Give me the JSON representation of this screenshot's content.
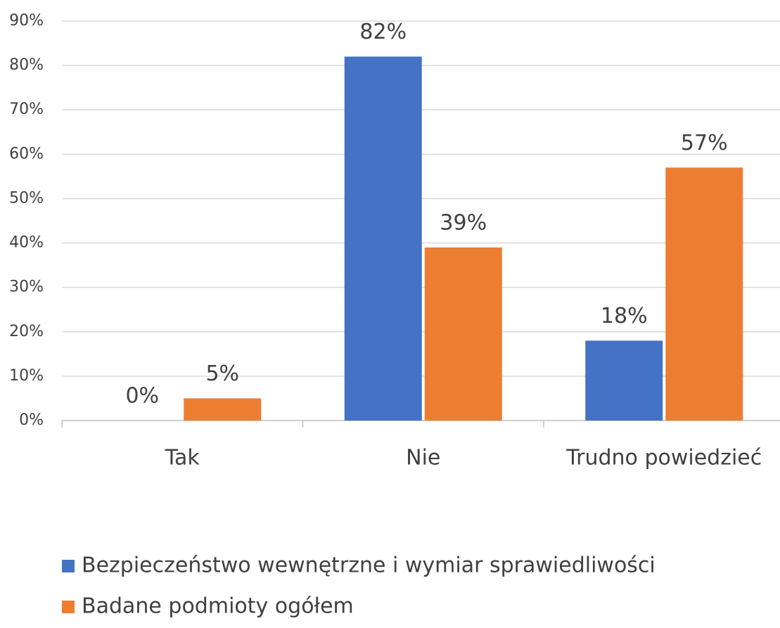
{
  "chart_data": {
    "type": "bar",
    "categories": [
      "Tak",
      "Nie",
      "Trudno powiedzieć"
    ],
    "series": [
      {
        "name": "Bezpieczeństwo wewnętrzne i wymiar sprawiedliwości",
        "color": "#4472c4",
        "values": [
          0,
          82,
          18
        ],
        "value_labels": [
          "0%",
          "82%",
          "18%"
        ]
      },
      {
        "name": "Badane podmioty ogółem",
        "color": "#ed7d31",
        "values": [
          5,
          39,
          57
        ],
        "value_labels": [
          "5%",
          "39%",
          "57%"
        ]
      }
    ],
    "ylim": [
      0,
      90
    ],
    "yticks": [
      {
        "value": 0,
        "label": "0%"
      },
      {
        "value": 10,
        "label": "10%"
      },
      {
        "value": 20,
        "label": "20%"
      },
      {
        "value": 30,
        "label": "30%"
      },
      {
        "value": 40,
        "label": "40%"
      },
      {
        "value": 50,
        "label": "50%"
      },
      {
        "value": 60,
        "label": "60%"
      },
      {
        "value": 70,
        "label": "70%"
      },
      {
        "value": 80,
        "label": "80%"
      },
      {
        "value": 90,
        "label": "90%"
      }
    ],
    "grid": true,
    "legend": "bottom"
  }
}
